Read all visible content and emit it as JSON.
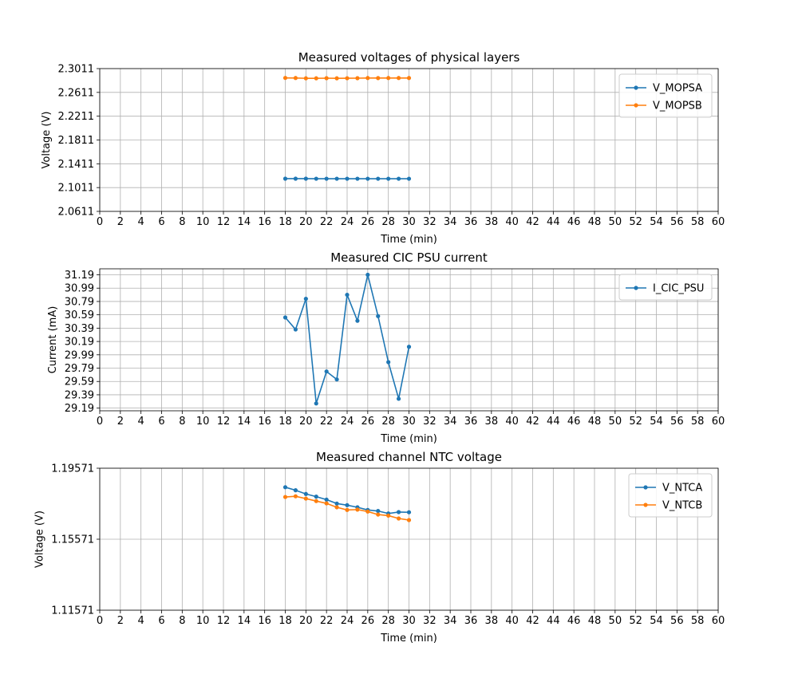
{
  "chart_data": [
    {
      "type": "line",
      "title": "Measured voltages of physical layers",
      "xlabel": "Time (min)",
      "ylabel": "Voltage (V)",
      "xlim": [
        0,
        60
      ],
      "ylim": [
        2.0611,
        2.3011
      ],
      "xticks": [
        0,
        2,
        4,
        6,
        8,
        10,
        12,
        14,
        16,
        18,
        20,
        22,
        24,
        26,
        28,
        30,
        32,
        34,
        36,
        38,
        40,
        42,
        44,
        46,
        48,
        50,
        52,
        54,
        56,
        58,
        60
      ],
      "yticks": [
        "2.0611",
        "2.1011",
        "2.1411",
        "2.1811",
        "2.2211",
        "2.2611",
        "2.3011"
      ],
      "grid": true,
      "legend": "top-right",
      "x": [
        18,
        19,
        20,
        21,
        22,
        23,
        24,
        25,
        26,
        27,
        28,
        29,
        30
      ],
      "series": [
        {
          "name": "V_MOPSA",
          "color": "#1f77b4",
          "values": [
            2.1161,
            2.1161,
            2.1161,
            2.116,
            2.116,
            2.116,
            2.116,
            2.116,
            2.116,
            2.116,
            2.116,
            2.116,
            2.116
          ]
        },
        {
          "name": "V_MOPSB",
          "color": "#ff7f0e",
          "values": [
            2.2854,
            2.2853,
            2.2848,
            2.2848,
            2.285,
            2.2848,
            2.2849,
            2.285,
            2.2853,
            2.2852,
            2.2853,
            2.2853,
            2.2853
          ]
        }
      ]
    },
    {
      "type": "line",
      "title": "Measured CIC PSU current",
      "xlabel": "Time (min)",
      "ylabel": "Current (mA)",
      "xlim": [
        0,
        60
      ],
      "ylim": [
        29.15,
        31.28
      ],
      "xticks": [
        0,
        2,
        4,
        6,
        8,
        10,
        12,
        14,
        16,
        18,
        20,
        22,
        24,
        26,
        28,
        30,
        32,
        34,
        36,
        38,
        40,
        42,
        44,
        46,
        48,
        50,
        52,
        54,
        56,
        58,
        60
      ],
      "yticks": [
        "29.19",
        "29.39",
        "29.59",
        "29.79",
        "29.99",
        "30.19",
        "30.39",
        "30.59",
        "30.79",
        "30.99",
        "31.19"
      ],
      "grid": true,
      "legend": "top-right",
      "x": [
        18,
        19,
        20,
        21,
        22,
        23,
        24,
        25,
        26,
        27,
        28,
        29,
        30
      ],
      "series": [
        {
          "name": "I_CIC_PSU",
          "color": "#1f77b4",
          "values": [
            30.55,
            30.37,
            30.83,
            29.26,
            29.74,
            29.62,
            30.89,
            30.5,
            31.19,
            30.57,
            29.88,
            29.33,
            30.11
          ]
        }
      ]
    },
    {
      "type": "line",
      "title": "Measured channel NTC voltage",
      "xlabel": "Time (min)",
      "ylabel": "Voltage (V)",
      "xlim": [
        0,
        60
      ],
      "ylim": [
        1.11571,
        1.19571
      ],
      "xticks": [
        0,
        2,
        4,
        6,
        8,
        10,
        12,
        14,
        16,
        18,
        20,
        22,
        24,
        26,
        28,
        30,
        32,
        34,
        36,
        38,
        40,
        42,
        44,
        46,
        48,
        50,
        52,
        54,
        56,
        58,
        60
      ],
      "yticks": [
        "1.11571",
        "1.15571",
        "1.19571"
      ],
      "grid": true,
      "legend": "top-right",
      "x": [
        18,
        19,
        20,
        21,
        22,
        23,
        24,
        25,
        26,
        27,
        28,
        29,
        30
      ],
      "series": [
        {
          "name": "V_NTCA",
          "color": "#1f77b4",
          "values": [
            1.185,
            1.1833,
            1.1812,
            1.1797,
            1.178,
            1.1758,
            1.1749,
            1.1737,
            1.1722,
            1.1716,
            1.1702,
            1.171,
            1.1709
          ]
        },
        {
          "name": "V_NTCB",
          "color": "#ff7f0e",
          "values": [
            1.1795,
            1.1799,
            1.1786,
            1.1772,
            1.1759,
            1.1737,
            1.1722,
            1.1724,
            1.1713,
            1.1696,
            1.169,
            1.1674,
            1.1665
          ]
        }
      ]
    }
  ]
}
